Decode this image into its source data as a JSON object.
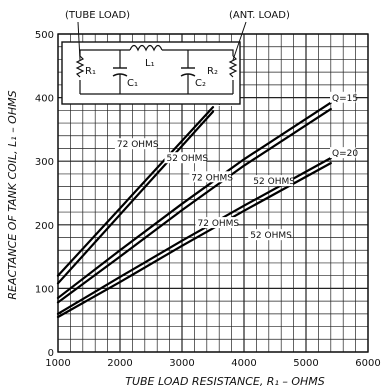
{
  "chart_data": {
    "type": "line",
    "xlabel": "TUBE LOAD RESISTANCE, R₁ – OHMS",
    "ylabel": "REACTANCE OF TANK COIL, L₁ – OHMS",
    "xlim": [
      1000,
      6000
    ],
    "ylim": [
      0,
      500
    ],
    "x_ticks": [
      1000,
      2000,
      3000,
      4000,
      5000,
      6000
    ],
    "y_ticks": [
      0,
      100,
      200,
      300,
      400,
      500
    ],
    "grid": true,
    "series": [
      {
        "name": "Q=10 72 OHMS",
        "x": [
          1000,
          3500
        ],
        "y": [
          120,
          385
        ]
      },
      {
        "name": "Q=10 52 OHMS",
        "x": [
          1000,
          3500
        ],
        "y": [
          108,
          378
        ]
      },
      {
        "name": "Q=15 72 OHMS",
        "x": [
          1000,
          2000,
          3000,
          4000,
          5400
        ],
        "y": [
          85,
          160,
          233,
          303,
          392
        ]
      },
      {
        "name": "Q=15 52 OHMS",
        "x": [
          1000,
          2000,
          3000,
          4000,
          5400
        ],
        "y": [
          78,
          150,
          223,
          293,
          382
        ]
      },
      {
        "name": "Q=20 72 OHMS",
        "x": [
          1000,
          2000,
          3000,
          4000,
          5400
        ],
        "y": [
          60,
          118,
          175,
          230,
          305
        ]
      },
      {
        "name": "Q=20 52 OHMS",
        "x": [
          1000,
          2000,
          3000,
          4000,
          5400
        ],
        "y": [
          55,
          110,
          167,
          222,
          297
        ]
      }
    ],
    "annotations": [
      {
        "text": "Q=10",
        "x": 3520,
        "y": 390
      },
      {
        "text": "Q=15",
        "x": 5420,
        "y": 395
      },
      {
        "text": "Q=20",
        "x": 5420,
        "y": 308
      },
      {
        "text": "72 OHMS",
        "x": 1950,
        "y": 322
      },
      {
        "text": "52 OHMS",
        "x": 2750,
        "y": 300
      },
      {
        "text": "72 OHMS",
        "x": 3150,
        "y": 270
      },
      {
        "text": "52 OHMS",
        "x": 4150,
        "y": 264
      },
      {
        "text": "72 OHMS",
        "x": 3250,
        "y": 198
      },
      {
        "text": "52 OHMS",
        "x": 4100,
        "y": 179
      }
    ]
  },
  "circuit": {
    "tube_load_label": "(TUBE LOAD)",
    "ant_load_label": "(ANT. LOAD)",
    "r1": "R₁",
    "l1": "L₁",
    "c1": "C₁",
    "c2": "C₂",
    "r2": "R₂"
  }
}
